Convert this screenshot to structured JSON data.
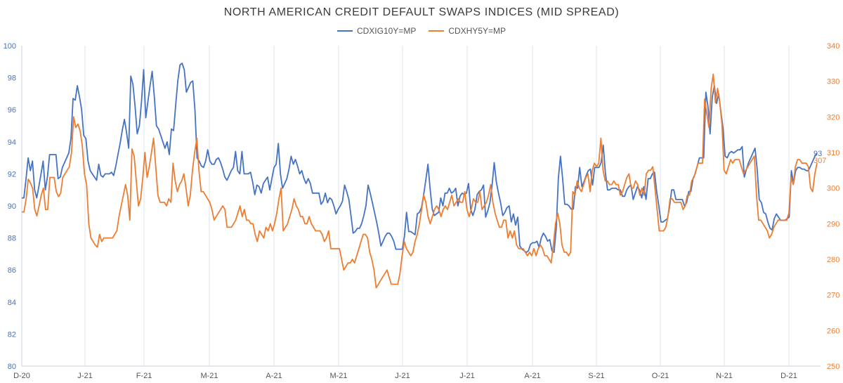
{
  "chart_data": {
    "type": "line",
    "title": "NORTH AMERICAN CREDIT DEFAULT SWAPS INDICES (MID SPREAD)",
    "x_tick_labels": [
      "D-20",
      "J-21",
      "F-21",
      "M-21",
      "A-21",
      "M-21",
      "J-21",
      "J-21",
      "A-21",
      "S-21",
      "O-21",
      "N-21",
      "D-21"
    ],
    "left_axis": {
      "ylim": [
        80,
        100
      ],
      "ticks": [
        "80",
        "82",
        "84",
        "86",
        "88",
        "90",
        "92",
        "94",
        "96",
        "98",
        "100"
      ],
      "color": "#4472C4"
    },
    "right_axis": {
      "ylim": [
        250,
        340
      ],
      "ticks": [
        "250",
        "260",
        "270",
        "280",
        "290",
        "300",
        "310",
        "320",
        "330",
        "340"
      ],
      "color": "#ED7D31"
    },
    "grid": "vertical",
    "legend_position": "top-center",
    "series": [
      {
        "name": "CDXIG10Y=MP",
        "axis": "left",
        "color": "#4472C4",
        "last_label": "93",
        "values": [
          90.5,
          90.5,
          91.7,
          93.0,
          92.2,
          92.8,
          91.0,
          90.5,
          91.2,
          92.0,
          92.8,
          91.0,
          91.8,
          93.2,
          93.2,
          93.2,
          93.2,
          91.7,
          91.8,
          92.4,
          92.7,
          93.0,
          93.3,
          94.2,
          96.7,
          96.6,
          97.5,
          96.8,
          96.0,
          94.4,
          94.2,
          92.8,
          92.2,
          92.0,
          91.8,
          91.6,
          92.6,
          91.9,
          91.8,
          92.0,
          92.0,
          92.0,
          92.1,
          91.9,
          92.5,
          93.2,
          93.9,
          94.7,
          95.4,
          94.6,
          93.6,
          98.1,
          97.6,
          96.2,
          94.5,
          95.0,
          96.5,
          98.5,
          95.5,
          96.5,
          97.5,
          98.4,
          96.8,
          95.0,
          94.8,
          94.4,
          94.0,
          93.6,
          94.0,
          93.2,
          94.8,
          94.7,
          96.3,
          97.8,
          98.8,
          98.9,
          98.5,
          97.1,
          97.4,
          97.7,
          97.8,
          96.0,
          93.0,
          92.8,
          92.5,
          92.4,
          92.8,
          93.5,
          92.8,
          92.6,
          92.6,
          92.9,
          93.0,
          92.7,
          92.3,
          91.8,
          91.6,
          91.9,
          92.2,
          92.4,
          93.4,
          92.2,
          92.0,
          93.4,
          92.0,
          92.0,
          92.0,
          92.1,
          91.5,
          90.7,
          91.3,
          91.2,
          90.8,
          91.4,
          91.6,
          91.8,
          91.0,
          91.7,
          92.4,
          92.6,
          93.9,
          92.0,
          91.1,
          91.4,
          91.7,
          92.3,
          93.1,
          92.6,
          92.9,
          92.5,
          92.0,
          92.2,
          91.7,
          91.4,
          91.7,
          91.4,
          90.8,
          90.8,
          90.8,
          90.8,
          90.1,
          90.3,
          90.8,
          90.2,
          90.5,
          90.4,
          90.0,
          89.5,
          89.8,
          90.0,
          90.3,
          91.3,
          90.9,
          90.4,
          89.4,
          88.3,
          88.4,
          88.6,
          88.6,
          88.9,
          89.4,
          90.0,
          91.3,
          90.8,
          90.2,
          89.6,
          89.0,
          88.3,
          87.5,
          87.8,
          88.1,
          88.3,
          88.3,
          88.1,
          87.8,
          87.3,
          87.3,
          87.3,
          87.3,
          88.1,
          89.6,
          88.4,
          88.4,
          88.3,
          88.2,
          89.5,
          89.6,
          89.9,
          90.7,
          91.6,
          92.6,
          91.1,
          89.8,
          89.4,
          89.5,
          89.6,
          90.5,
          90.0,
          90.8,
          90.8,
          91.1,
          90.8,
          90.9,
          91.1,
          90.0,
          90.6,
          90.8,
          90.7,
          90.8,
          91.4,
          89.8,
          89.4,
          89.8,
          90.7,
          90.9,
          91.0,
          91.3,
          89.3,
          89.7,
          90.2,
          91.3,
          92.7,
          91.5,
          90.8,
          90.2,
          89.4,
          89.6,
          89.9,
          90.0,
          89.0,
          89.5,
          88.8,
          89.3,
          87.5,
          87.3,
          87.2,
          87.1,
          87.2,
          87.6,
          87.7,
          87.7,
          87.8,
          87.4,
          88.0,
          88.3,
          88.1,
          87.8,
          87.9,
          87.2,
          87.1,
          88.6,
          91.7,
          93.1,
          91.7,
          90.1,
          90.1,
          90.0,
          89.8,
          89.8,
          91.2,
          91.1,
          92.4,
          91.2,
          91.5,
          91.9,
          92.2,
          92.3,
          91.3,
          92.4,
          92.4,
          92.4,
          92.7,
          93.8,
          92.1,
          91.0,
          91.0,
          91.1,
          91.1,
          91.1,
          91.0,
          91.0,
          90.6,
          90.6,
          91.0,
          91.2,
          91.3,
          90.4,
          90.8,
          91.2,
          91.0,
          90.5,
          91.2,
          90.4,
          91.7,
          91.7,
          92.0,
          92.1,
          90.9,
          90.0,
          89.0,
          89.0,
          89.1,
          89.2,
          89.9,
          91.0,
          91.0,
          90.4,
          90.4,
          90.4,
          90.4,
          90.0,
          90.2,
          90.9,
          90.9,
          91.7,
          92.0,
          92.5,
          93.0,
          93.0,
          93.0,
          97.1,
          96.2,
          94.5,
          96.8,
          97.5,
          96.4,
          97.0,
          95.9,
          94.9,
          93.1,
          93.0,
          93.3,
          93.4,
          93.3,
          93.4,
          93.5,
          93.5,
          93.7,
          91.8,
          92.3,
          92.7,
          93.0,
          93.3,
          93.6,
          92.3,
          90.4,
          90.2,
          89.6,
          89.5,
          89.0,
          88.6,
          88.5,
          89.2,
          89.5,
          89.3,
          89.1,
          89.1,
          89.1,
          89.2,
          89.3,
          92.2,
          91.4,
          92.2,
          92.4,
          92.4,
          92.3,
          92.3,
          92.2,
          92.2,
          92.5,
          92.8,
          93.1,
          93.3
        ]
      },
      {
        "name": "CDXHY5Y=MP",
        "axis": "right",
        "color": "#ED7D31",
        "last_label": "307",
        "values": [
          293.3,
          293.3,
          297.0,
          302.5,
          301.5,
          300.0,
          294.0,
          292.2,
          295.0,
          298.0,
          300.0,
          294.0,
          294.0,
          303.0,
          303.0,
          303.0,
          299.0,
          297.6,
          298.6,
          303.0,
          304.0,
          305.0,
          306.0,
          310.0,
          320.0,
          317.0,
          318.0,
          316.0,
          312.0,
          304.0,
          301.0,
          290.0,
          286.0,
          285.0,
          284.0,
          283.4,
          287.0,
          285.0,
          286.0,
          286.0,
          286.0,
          286.0,
          286.0,
          287.0,
          288.0,
          292.0,
          295.0,
          298.0,
          301.0,
          298.0,
          291.0,
          311.0,
          309.0,
          302.0,
          295.0,
          297.0,
          303.0,
          310.0,
          303.0,
          306.0,
          310.0,
          314.0,
          306.0,
          298.0,
          296.0,
          296.0,
          296.0,
          295.0,
          297.0,
          296.0,
          307.0,
          302.0,
          299.0,
          301.0,
          302.0,
          304.0,
          300.0,
          295.0,
          298.0,
          305.0,
          310.0,
          314.0,
          305.0,
          299.0,
          299.0,
          298.0,
          297.0,
          296.0,
          294.0,
          291.0,
          292.0,
          293.0,
          294.0,
          295.0,
          294.0,
          289.0,
          289.0,
          289.0,
          290.0,
          291.0,
          293.0,
          295.0,
          292.0,
          294.0,
          291.0,
          291.0,
          290.0,
          290.0,
          287.0,
          285.0,
          288.0,
          287.0,
          286.0,
          289.0,
          288.0,
          290.0,
          288.0,
          290.0,
          293.0,
          297.0,
          300.0,
          288.0,
          289.0,
          290.0,
          292.0,
          294.0,
          297.0,
          295.0,
          294.0,
          292.0,
          292.0,
          290.0,
          290.0,
          292.0,
          290.0,
          289.0,
          288.0,
          288.0,
          288.0,
          287.0,
          285.0,
          286.0,
          288.0,
          283.0,
          283.0,
          283.0,
          283.0,
          283.0,
          280.0,
          277.0,
          278.0,
          279.0,
          279.0,
          280.0,
          279.0,
          281.0,
          283.0,
          285.0,
          287.0,
          287.0,
          286.0,
          282.0,
          280.0,
          277.0,
          272.0,
          273.0,
          274.0,
          275.0,
          276.0,
          277.0,
          275.0,
          273.0,
          273.0,
          273.0,
          273.0,
          276.0,
          281.0,
          285.0,
          283.0,
          282.0,
          281.0,
          282.0,
          285.0,
          287.0,
          290.0,
          294.0,
          298.0,
          296.0,
          292.0,
          290.0,
          292.0,
          294.0,
          295.0,
          294.0,
          292.0,
          294.0,
          295.0,
          294.0,
          296.0,
          298.0,
          295.0,
          296.0,
          297.0,
          296.0,
          296.0,
          299.0,
          294.0,
          292.0,
          294.0,
          297.0,
          296.0,
          296.0,
          299.0,
          294.0,
          295.0,
          296.0,
          298.0,
          301.0,
          296.0,
          293.0,
          291.0,
          289.0,
          289.0,
          291.0,
          291.0,
          286.0,
          288.0,
          286.0,
          288.0,
          284.0,
          283.0,
          283.0,
          283.0,
          282.0,
          281.0,
          282.0,
          281.0,
          283.0,
          281.0,
          283.0,
          284.0,
          283.0,
          281.0,
          281.0,
          280.0,
          279.0,
          284.0,
          290.0,
          293.0,
          290.0,
          284.0,
          282.0,
          282.0,
          281.0,
          282.0,
          299.0,
          298.0,
          302.0,
          300.0,
          299.0,
          301.0,
          303.0,
          304.0,
          299.0,
          305.0,
          307.0,
          306.0,
          307.0,
          314.0,
          305.0,
          302.0,
          302.0,
          301.0,
          301.0,
          302.0,
          301.0,
          301.0,
          298.0,
          299.0,
          301.0,
          303.0,
          304.0,
          300.0,
          300.0,
          302.0,
          301.0,
          298.0,
          300.0,
          298.0,
          304.0,
          305.0,
          305.0,
          306.0,
          300.0,
          294.0,
          288.0,
          288.0,
          288.0,
          289.0,
          292.0,
          297.0,
          297.0,
          296.0,
          296.0,
          296.0,
          296.0,
          294.0,
          295.0,
          298.0,
          298.0,
          302.0,
          303.0,
          305.0,
          307.0,
          307.0,
          307.0,
          325.0,
          321.0,
          317.0,
          328.0,
          332.0,
          324.0,
          328.0,
          324.0,
          318.0,
          305.0,
          304.0,
          306.0,
          308.0,
          307.0,
          308.0,
          308.0,
          308.0,
          306.0,
          304.0,
          305.0,
          306.0,
          307.0,
          308.0,
          309.0,
          298.0,
          291.0,
          291.0,
          290.0,
          289.0,
          288.0,
          286.0,
          287.0,
          289.0,
          290.0,
          291.0,
          291.0,
          291.0,
          291.0,
          291.0,
          293.0,
          303.0,
          301.0,
          306.0,
          308.0,
          308.0,
          307.0,
          307.0,
          307.0,
          306.0,
          300.0,
          299.0,
          304.0,
          307.0
        ]
      }
    ]
  }
}
